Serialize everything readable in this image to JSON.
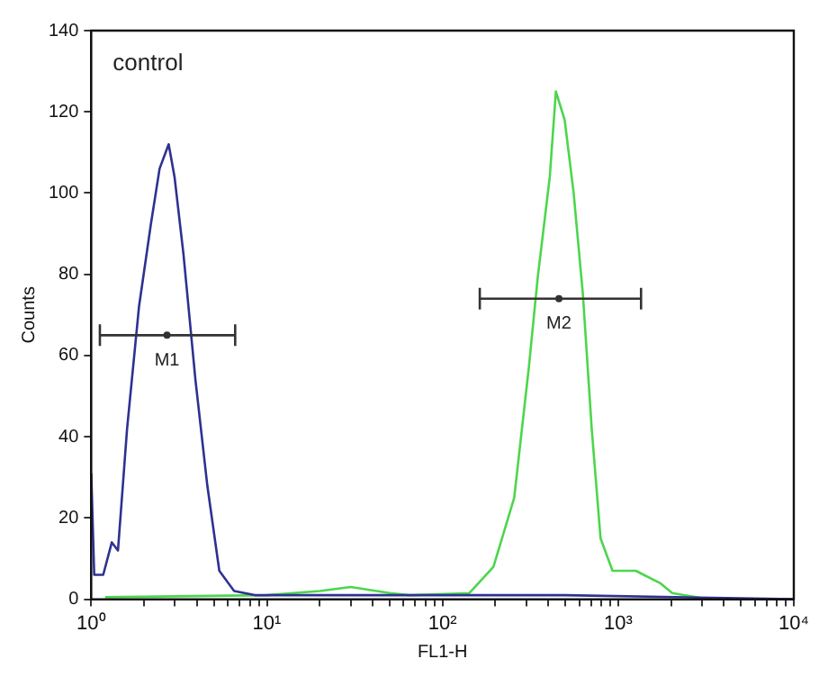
{
  "chart_data": {
    "type": "line",
    "xlabel": "FL1-H",
    "ylabel": "Counts",
    "log": "x",
    "xlim": [
      1,
      10000
    ],
    "ylim": [
      0,
      140
    ],
    "xticks": [
      {
        "value": 1,
        "label": "10⁰"
      },
      {
        "value": 2,
        "label": null
      },
      {
        "value": 3,
        "label": null
      },
      {
        "value": 4,
        "label": null
      },
      {
        "value": 5,
        "label": null
      },
      {
        "value": 6,
        "label": null
      },
      {
        "value": 7,
        "label": null
      },
      {
        "value": 8,
        "label": null
      },
      {
        "value": 9,
        "label": null
      },
      {
        "value": 10,
        "label": "10¹"
      },
      {
        "value": 20,
        "label": null
      },
      {
        "value": 30,
        "label": null
      },
      {
        "value": 40,
        "label": null
      },
      {
        "value": 50,
        "label": null
      },
      {
        "value": 60,
        "label": null
      },
      {
        "value": 70,
        "label": null
      },
      {
        "value": 80,
        "label": null
      },
      {
        "value": 90,
        "label": null
      },
      {
        "value": 100,
        "label": "10²"
      },
      {
        "value": 200,
        "label": null
      },
      {
        "value": 300,
        "label": null
      },
      {
        "value": 400,
        "label": null
      },
      {
        "value": 500,
        "label": null
      },
      {
        "value": 600,
        "label": null
      },
      {
        "value": 700,
        "label": null
      },
      {
        "value": 800,
        "label": null
      },
      {
        "value": 900,
        "label": null
      },
      {
        "value": 1000,
        "label": "10³"
      },
      {
        "value": 2000,
        "label": null
      },
      {
        "value": 3000,
        "label": null
      },
      {
        "value": 4000,
        "label": null
      },
      {
        "value": 5000,
        "label": null
      },
      {
        "value": 6000,
        "label": null
      },
      {
        "value": 7000,
        "label": null
      },
      {
        "value": 8000,
        "label": null
      },
      {
        "value": 9000,
        "label": null
      },
      {
        "value": 10000,
        "label": "10⁴"
      }
    ],
    "yticks": [
      0,
      20,
      40,
      60,
      80,
      100,
      120,
      140
    ],
    "grid": false,
    "legend": false,
    "marker": "none",
    "line_style": "solid",
    "series": [
      {
        "color": "#2e3192",
        "x": [
          1,
          1.04,
          1.17,
          1.31,
          1.42,
          1.6,
          1.87,
          2.18,
          2.45,
          2.76,
          2.98,
          3.35,
          3.92,
          4.58,
          5.36,
          6.51,
          8.55,
          20,
          500,
          10000
        ],
        "values": [
          31,
          6,
          6,
          14,
          12,
          42,
          72,
          92,
          106,
          112,
          104,
          85,
          54,
          28,
          7,
          2,
          1,
          1,
          1,
          0
        ]
      },
      {
        "color": "#4cd64c",
        "x": [
          1.2,
          10,
          20,
          30,
          50,
          65,
          142,
          195,
          256,
          310,
          348,
          408,
          442,
          496,
          558,
          630,
          707,
          794,
          929,
          1260,
          1730,
          2030,
          3230,
          10000
        ],
        "values": [
          0.5,
          1,
          2,
          3,
          1.5,
          1,
          1.5,
          8,
          25,
          57,
          79,
          104,
          125,
          118,
          100,
          75,
          42,
          15,
          7,
          7,
          4,
          1.5,
          0,
          0
        ]
      },
      {
        "type": "scatter",
        "marker": "circle",
        "color": "#333333",
        "x": [
          2.7
        ],
        "values": [
          65
        ],
        "xerrors": [
          [
            1.12,
            6.6
          ]
        ]
      },
      {
        "type": "scatter",
        "marker": "circle",
        "color": "#333333",
        "x": [
          460
        ],
        "values": [
          74
        ],
        "xerrors": [
          [
            163,
            1350
          ]
        ]
      }
    ],
    "annotations": [
      "control",
      {
        "text": "M1",
        "x": 2.7,
        "y": 65
      },
      {
        "text": "M2",
        "x": 460,
        "y": 74
      }
    ]
  }
}
